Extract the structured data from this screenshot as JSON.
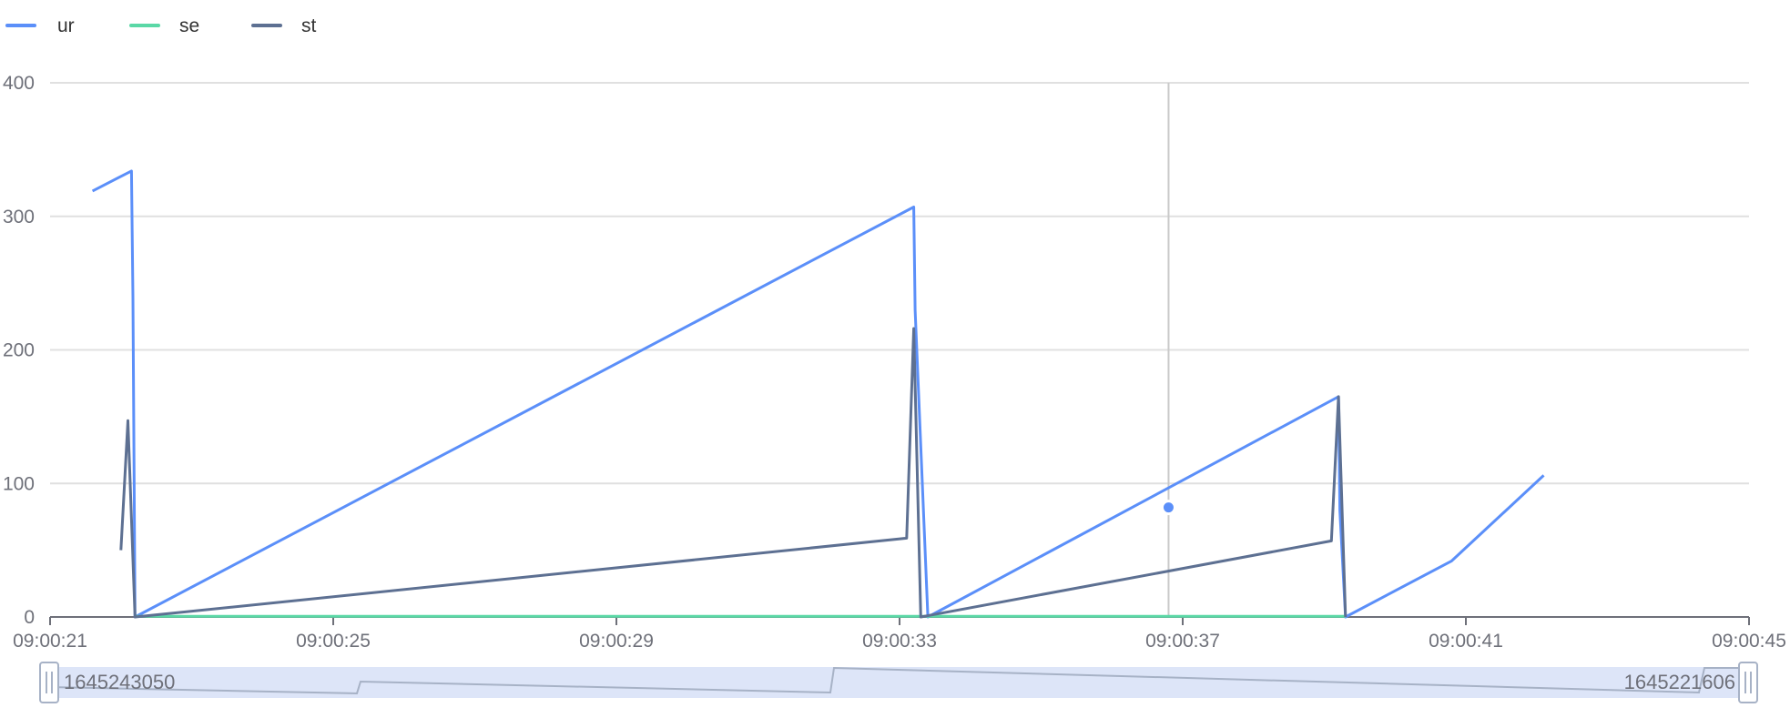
{
  "legend": [
    {
      "label": "ur",
      "color": "#5b8ff9"
    },
    {
      "label": "se",
      "color": "#5ad8a6"
    },
    {
      "label": "st",
      "color": "#5d7092"
    }
  ],
  "datazoom": {
    "start_label": "1645243050",
    "end_label": "1645221606",
    "fill_color": "#dde5f8",
    "handle_icon": "grip-lines-icon"
  },
  "tooltip_pointer": {
    "time": "09:00:36.8",
    "series": "ur",
    "value": 82
  },
  "chart_data": {
    "type": "line",
    "x_type": "time",
    "xlim": [
      "09:00:21",
      "09:00:45"
    ],
    "x_ticks": [
      "09:00:21",
      "09:00:25",
      "09:00:29",
      "09:00:33",
      "09:00:37",
      "09:00:41",
      "09:00:45"
    ],
    "ylim": [
      0,
      400
    ],
    "y_ticks": [
      0,
      100,
      200,
      300,
      400
    ],
    "grid": "horizontal",
    "legend_position": "top-left",
    "series": [
      {
        "name": "ur",
        "color": "#5b8ff9",
        "points": [
          [
            "09:00:21.6",
            319
          ],
          [
            "09:00:22.15",
            334
          ],
          [
            "09:00:22.17",
            240
          ],
          [
            "09:00:22.2",
            0
          ],
          [
            "09:00:33.2",
            307
          ],
          [
            "09:00:33.22",
            230
          ],
          [
            "09:00:33.4",
            0
          ],
          [
            "09:00:39.2",
            165
          ],
          [
            "09:00:39.22",
            80
          ],
          [
            "09:00:39.3",
            0
          ],
          [
            "09:00:40.8",
            42
          ],
          [
            "09:00:42.1",
            106
          ]
        ]
      },
      {
        "name": "se",
        "color": "#5ad8a6",
        "points": [
          [
            "09:00:22.2",
            0.5
          ],
          [
            "09:00:33.2",
            0.5
          ],
          [
            "09:00:33.4",
            0.5
          ],
          [
            "09:00:39.3",
            0.5
          ]
        ]
      },
      {
        "name": "st",
        "color": "#5d7092",
        "points": [
          [
            "09:00:22.0",
            50
          ],
          [
            "09:00:22.1",
            147
          ],
          [
            "09:00:22.2",
            0
          ],
          [
            "09:00:33.1",
            59
          ],
          [
            "09:00:33.2",
            216
          ],
          [
            "09:00:33.3",
            0
          ],
          [
            "09:00:39.1",
            57
          ],
          [
            "09:00:39.2",
            165
          ],
          [
            "09:00:39.3",
            0
          ]
        ]
      }
    ]
  }
}
